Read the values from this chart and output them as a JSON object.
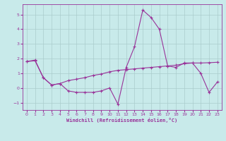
{
  "background_color": "#c8eaea",
  "grid_color": "#aacccc",
  "line_color": "#993399",
  "xlabel": "Windchill (Refroidissement éolien,°C)",
  "xlim": [
    -0.5,
    23.5
  ],
  "ylim": [
    -1.5,
    5.7
  ],
  "yticks": [
    -1,
    0,
    1,
    2,
    3,
    4,
    5
  ],
  "xticks": [
    0,
    1,
    2,
    3,
    4,
    5,
    6,
    7,
    8,
    9,
    10,
    11,
    12,
    13,
    14,
    15,
    16,
    17,
    18,
    19,
    20,
    21,
    22,
    23
  ],
  "line1_x": [
    0,
    1,
    2,
    3,
    4,
    5,
    6,
    7,
    8,
    9,
    10,
    11,
    12,
    13,
    14,
    15,
    16,
    17,
    18,
    19,
    20,
    21,
    22,
    23
  ],
  "line1_y": [
    1.8,
    1.9,
    0.7,
    0.2,
    0.3,
    -0.2,
    -0.3,
    -0.3,
    -0.3,
    -0.2,
    0.0,
    -1.1,
    1.4,
    2.8,
    5.3,
    4.8,
    4.0,
    1.5,
    1.4,
    1.7,
    1.7,
    1.0,
    -0.3,
    0.4
  ],
  "line2_x": [
    0,
    1,
    2,
    3,
    4,
    5,
    6,
    7,
    8,
    9,
    10,
    11,
    12,
    13,
    14,
    15,
    16,
    17,
    18,
    19,
    20,
    21,
    22,
    23
  ],
  "line2_y": [
    1.8,
    1.85,
    0.7,
    0.2,
    0.3,
    0.5,
    0.6,
    0.7,
    0.85,
    0.95,
    1.1,
    1.2,
    1.25,
    1.3,
    1.35,
    1.4,
    1.45,
    1.5,
    1.55,
    1.65,
    1.7,
    1.7,
    1.72,
    1.75
  ]
}
